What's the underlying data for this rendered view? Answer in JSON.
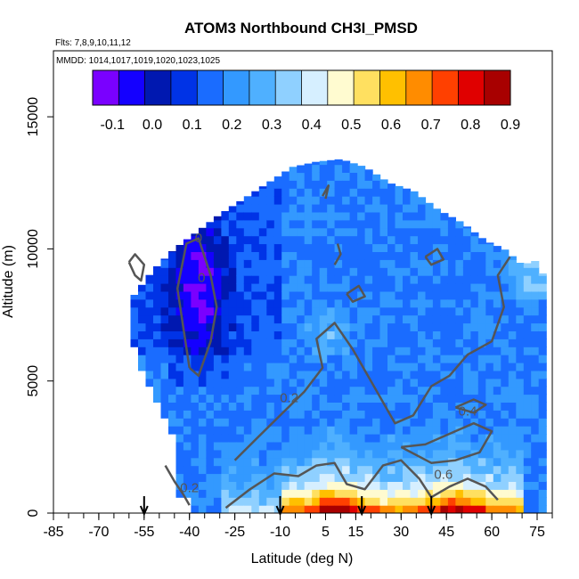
{
  "chart_data": {
    "type": "heatmap",
    "title": "ATOM3 Northbound CH3I_PMSD",
    "subtitle_flights": "Flts: 7,8,9,10,11,12",
    "subtitle_dates": "MMDD: 1014,1017,1019,1020,1023,1025",
    "xlabel": "Latitude (deg N)",
    "ylabel": "Altitude (m)",
    "xlim": [
      -85,
      80
    ],
    "ylim": [
      0,
      17500
    ],
    "x_ticks": [
      -85,
      -70,
      -55,
      -40,
      -25,
      -10,
      5,
      15,
      30,
      45,
      60,
      75
    ],
    "x_tick_labels": [
      "-85",
      "-70",
      "-55",
      "-40",
      "-25",
      "-10",
      "5",
      "15",
      "30",
      "45",
      "60",
      "75"
    ],
    "y_ticks": [
      0,
      5000,
      10000,
      15000
    ],
    "y_tick_labels": [
      "0",
      "5000",
      "10000",
      "15000"
    ],
    "colorbar": {
      "range": [
        -0.15,
        0.9
      ],
      "ticks": [
        -0.1,
        0.0,
        0.1,
        0.2,
        0.3,
        0.4,
        0.5,
        0.6,
        0.7,
        0.8,
        0.9
      ],
      "tick_labels": [
        "-0.1",
        "0.0",
        "0.1",
        "0.2",
        "0.3",
        "0.4",
        "0.5",
        "0.6",
        "0.7",
        "0.8",
        "0.9"
      ],
      "colors": [
        "#7a00ff",
        "#1400ff",
        "#0018b0",
        "#0033e6",
        "#1a6cff",
        "#3399ff",
        "#4fb0ff",
        "#8fd0ff",
        "#d6efff",
        "#fffbd0",
        "#ffe060",
        "#ffc000",
        "#ff8c00",
        "#ff4000",
        "#e00000",
        "#a80000"
      ]
    },
    "contour_labels": [
      {
        "text": "0",
        "x": -37,
        "y": 10250
      },
      {
        "text": "0",
        "x": -36,
        "y": 8750
      },
      {
        "text": "0.2",
        "x": -7,
        "y": 4200
      },
      {
        "text": "0.4",
        "x": 52,
        "y": 3700
      },
      {
        "text": "0.6",
        "x": 44,
        "y": 1300
      },
      {
        "text": "0.2",
        "x": -40,
        "y": 800
      }
    ],
    "flight_markers_lat": [
      -55,
      -10,
      17,
      40
    ],
    "envelope": {
      "lat": [
        -60,
        -52,
        -45,
        -38,
        -30,
        -22,
        -14,
        -6,
        2,
        10,
        18,
        26,
        34,
        42,
        50,
        58,
        64,
        70,
        76,
        78
      ],
      "ztop": [
        8000,
        9200,
        10000,
        10600,
        11300,
        11900,
        12500,
        13100,
        13300,
        13400,
        13100,
        12500,
        12200,
        11500,
        11000,
        10300,
        10000,
        9400,
        9600,
        8200
      ]
    }
  }
}
